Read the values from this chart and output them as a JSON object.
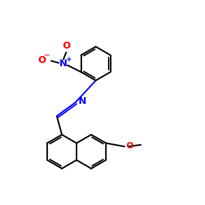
{
  "bg_color": "#ffffff",
  "bond_color": "#000000",
  "n_color": "#0000ff",
  "o_color": "#ff0000",
  "line_width": 1.6,
  "dbo": 0.055,
  "figsize": [
    3.0,
    3.0
  ],
  "dpi": 100,
  "r_hex": 0.5,
  "xlim": [
    0.0,
    5.5
  ],
  "ylim": [
    0.0,
    6.0
  ]
}
